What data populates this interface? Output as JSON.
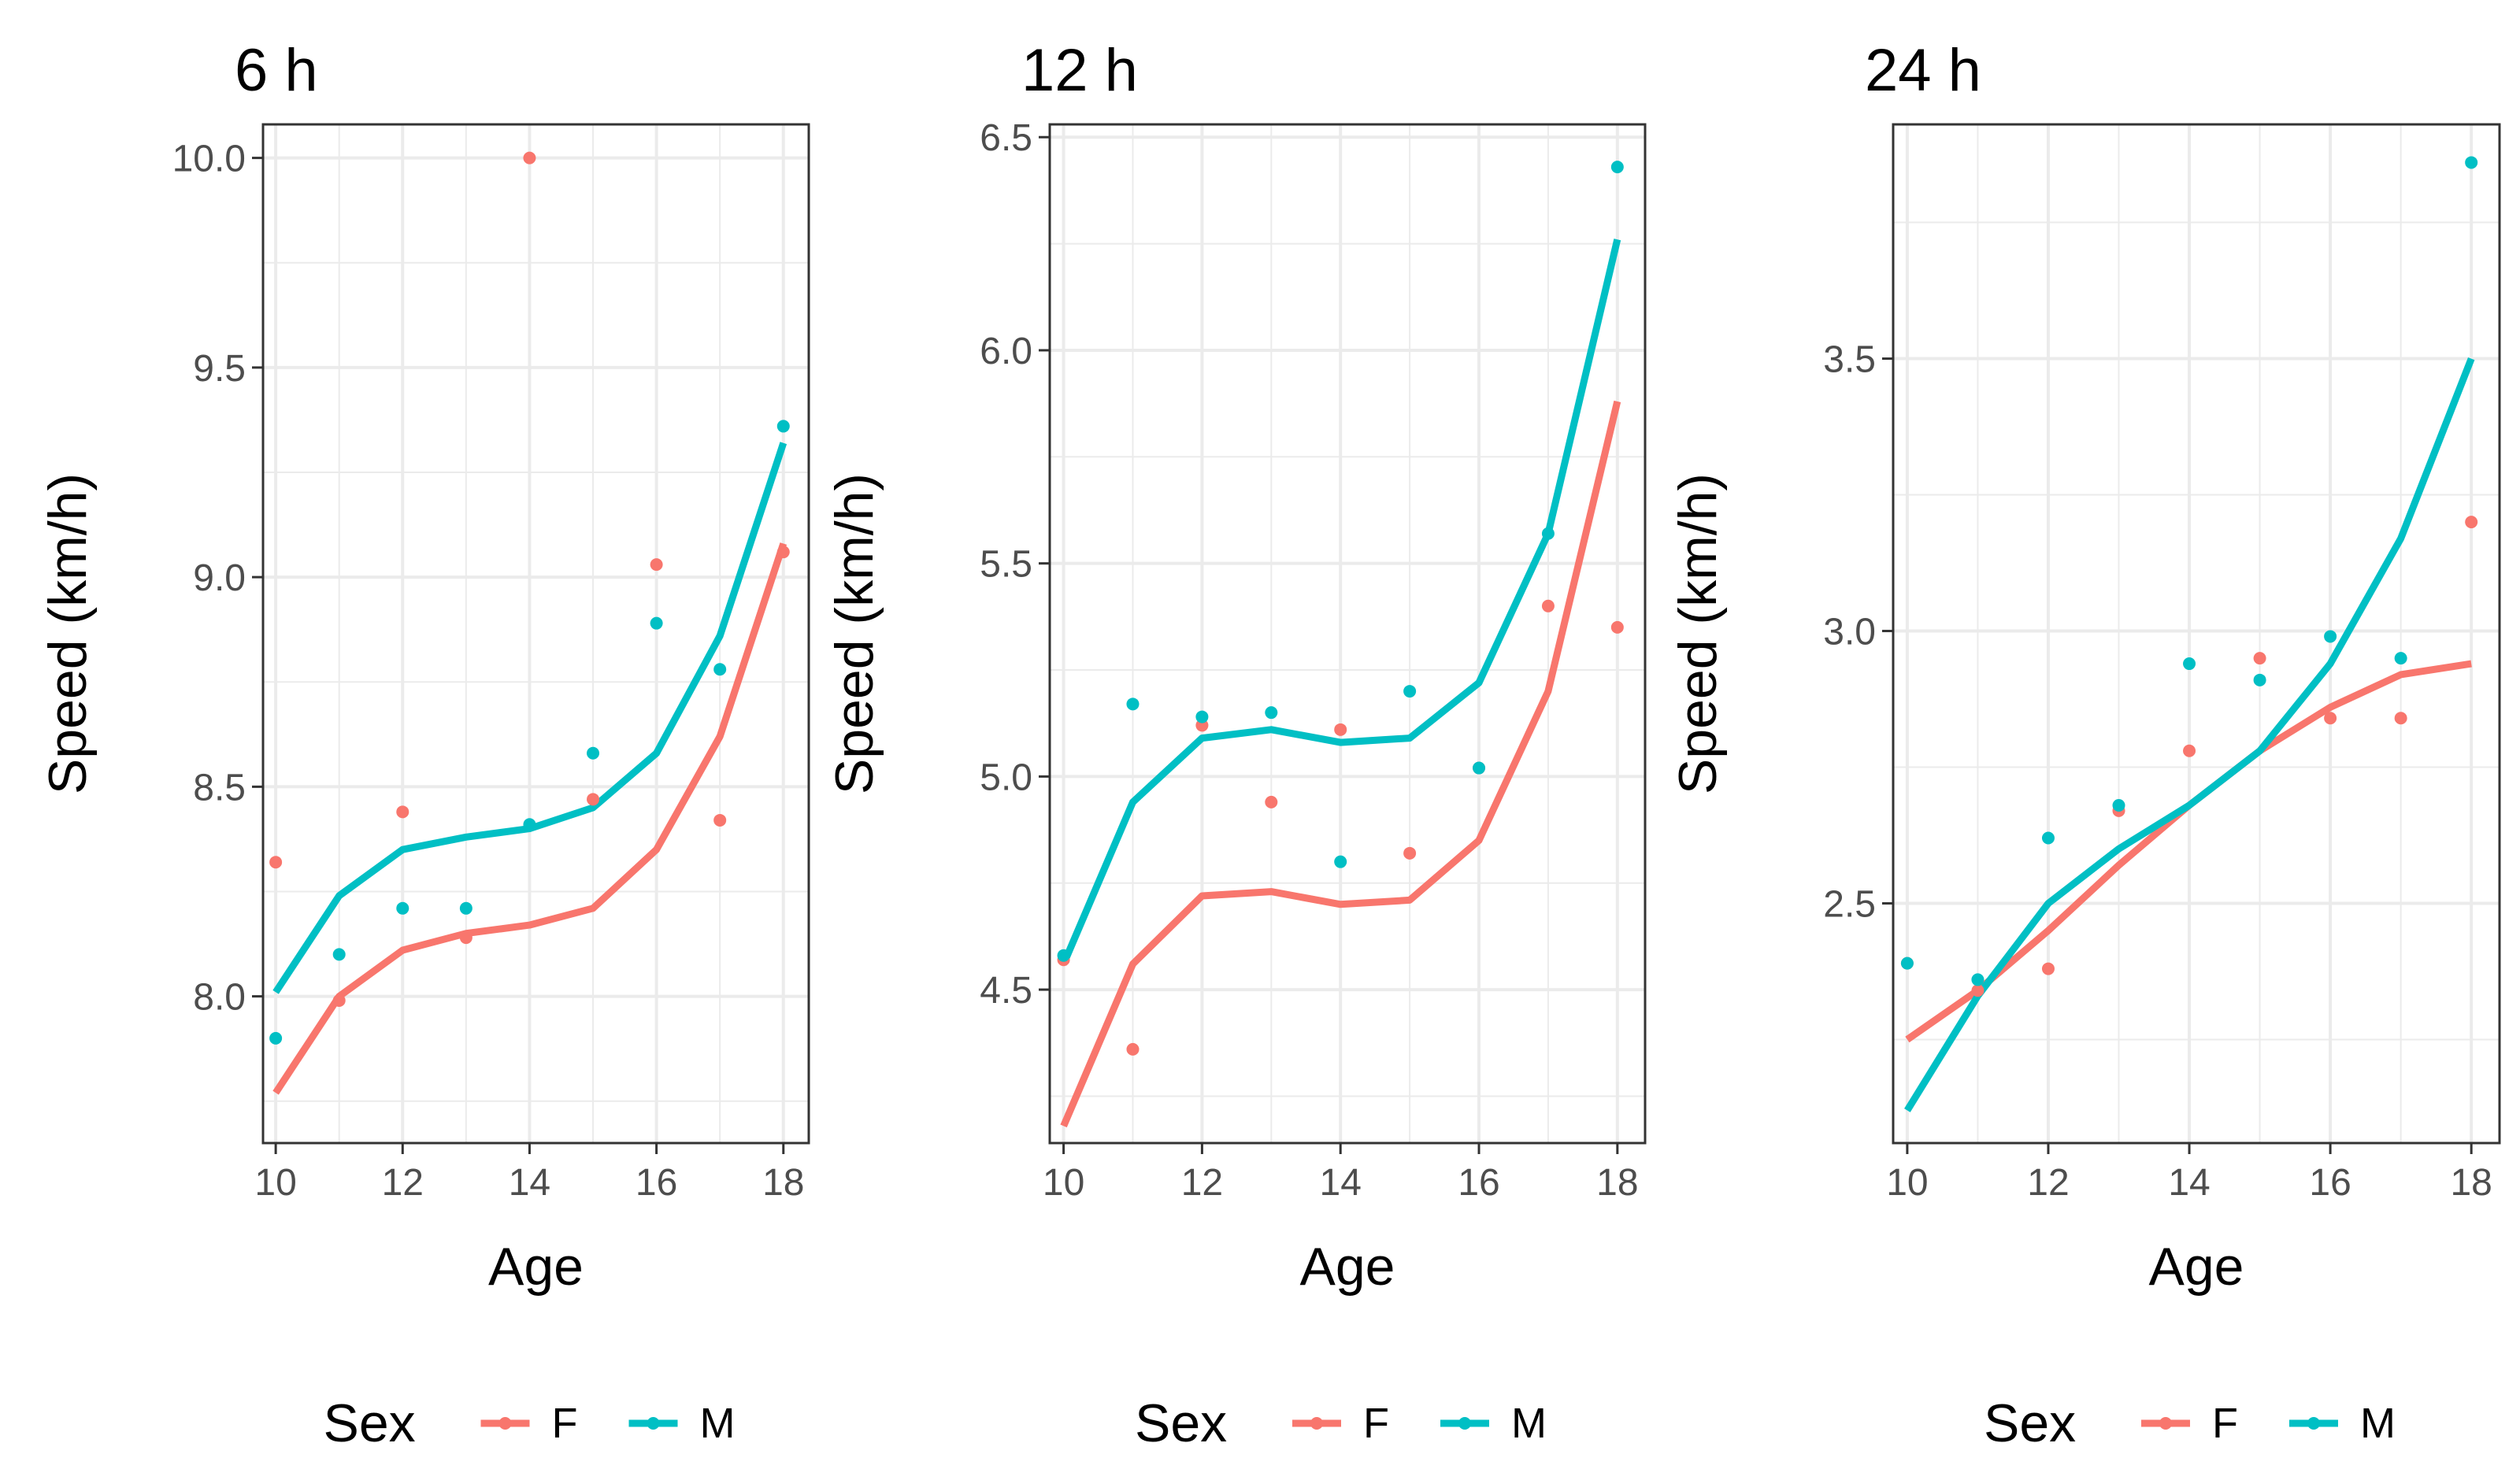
{
  "colors": {
    "F": "#F8766D",
    "M": "#00BFC4",
    "grid": "#EBEBEB",
    "frame": "#333333",
    "axis_text": "#4D4D4D",
    "text": "#000000"
  },
  "legend": {
    "title": "Sex",
    "entries": [
      "F",
      "M"
    ]
  },
  "chart_data": [
    {
      "type": "line",
      "title": "6 h",
      "xlabel": "Age",
      "ylabel": "Speed (km/h)",
      "xlim": [
        9.8,
        18.4
      ],
      "ylim": [
        7.65,
        10.08
      ],
      "xticks": [
        10,
        12,
        14,
        16,
        18
      ],
      "xtick_labels": [
        "10",
        "12",
        "14",
        "16",
        "18"
      ],
      "yticks": [
        8.0,
        8.5,
        9.0,
        9.5,
        10.0
      ],
      "ytick_labels": [
        "8.0",
        "8.5",
        "9.0",
        "9.5",
        "10.0"
      ],
      "x": [
        10,
        11,
        12,
        13,
        14,
        15,
        16,
        17,
        18
      ],
      "series": [
        {
          "name": "F",
          "points": [
            8.32,
            7.99,
            8.44,
            8.14,
            10.0,
            8.47,
            9.03,
            8.42,
            9.06
          ],
          "fitted": [
            7.77,
            8.0,
            8.11,
            8.15,
            8.17,
            8.21,
            8.35,
            8.62,
            9.08
          ]
        },
        {
          "name": "M",
          "points": [
            7.9,
            8.1,
            8.21,
            8.21,
            8.41,
            8.58,
            8.89,
            8.78,
            9.36
          ],
          "fitted": [
            8.01,
            8.24,
            8.35,
            8.38,
            8.4,
            8.45,
            8.58,
            8.86,
            9.32
          ]
        }
      ]
    },
    {
      "type": "line",
      "title": "12 h",
      "xlabel": "Age",
      "ylabel": "Speed (km/h)",
      "xlim": [
        9.8,
        18.4
      ],
      "ylim": [
        4.14,
        6.53
      ],
      "xticks": [
        10,
        12,
        14,
        16,
        18
      ],
      "xtick_labels": [
        "10",
        "12",
        "14",
        "16",
        "18"
      ],
      "yticks": [
        4.5,
        5.0,
        5.5,
        6.0,
        6.5
      ],
      "ytick_labels": [
        "4.5",
        "5.0",
        "5.5",
        "6.0",
        "6.5"
      ],
      "x": [
        10,
        11,
        12,
        13,
        14,
        15,
        16,
        17,
        18
      ],
      "series": [
        {
          "name": "F",
          "points": [
            4.57,
            4.36,
            5.12,
            4.94,
            5.11,
            4.82,
            5.02,
            5.4,
            5.35
          ],
          "fitted": [
            4.18,
            4.56,
            4.72,
            4.73,
            4.7,
            4.71,
            4.85,
            5.2,
            5.88
          ]
        },
        {
          "name": "M",
          "points": [
            4.58,
            5.17,
            5.14,
            5.15,
            4.8,
            5.2,
            5.02,
            5.57,
            6.43
          ],
          "fitted": [
            4.56,
            4.94,
            5.09,
            5.11,
            5.08,
            5.09,
            5.22,
            5.57,
            6.26
          ]
        }
      ]
    },
    {
      "type": "line",
      "title": "24 h",
      "xlabel": "Age",
      "ylabel": "Speed (km/h)",
      "xlim": [
        9.8,
        18.4
      ],
      "ylim": [
        2.06,
        3.93
      ],
      "xticks": [
        10,
        12,
        14,
        16,
        18
      ],
      "xtick_labels": [
        "10",
        "12",
        "14",
        "16",
        "18"
      ],
      "yticks": [
        2.5,
        3.0,
        3.5
      ],
      "ytick_labels": [
        "2.5",
        "3.0",
        "3.5"
      ],
      "x": [
        10,
        11,
        12,
        13,
        14,
        15,
        16,
        17,
        18
      ],
      "series": [
        {
          "name": "F",
          "points": [
            2.39,
            2.34,
            2.38,
            2.67,
            2.78,
            2.95,
            2.84,
            2.84,
            3.2
          ],
          "fitted": [
            2.25,
            2.34,
            2.45,
            2.57,
            2.68,
            2.78,
            2.86,
            2.92,
            2.94
          ]
        },
        {
          "name": "M",
          "points": [
            2.39,
            2.36,
            2.62,
            2.68,
            2.94,
            2.91,
            2.99,
            2.95,
            3.86
          ],
          "fitted": [
            2.12,
            2.33,
            2.5,
            2.6,
            2.68,
            2.78,
            2.94,
            3.17,
            3.5
          ]
        }
      ]
    }
  ]
}
